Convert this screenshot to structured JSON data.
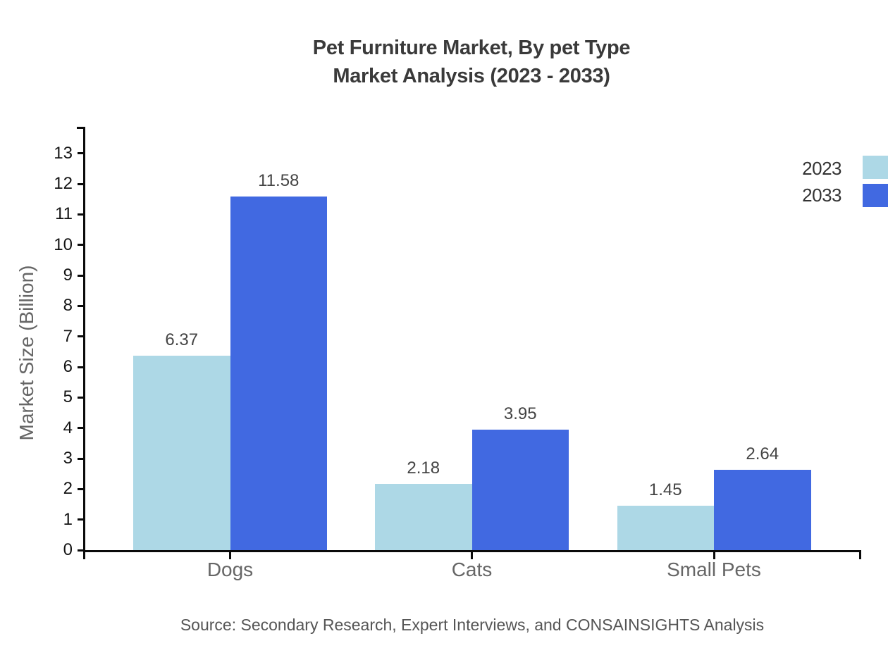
{
  "title": {
    "line1": "Pet Furniture Market, By pet Type",
    "line2": "Market Analysis (2023 - 2033)"
  },
  "legend": [
    {
      "label": "2023",
      "color": "#ADD8E6"
    },
    {
      "label": "2033",
      "color": "#4169E1"
    }
  ],
  "source": "Source: Secondary Research, Expert Interviews, and CONSAINSIGHTS Analysis",
  "colors": {
    "series_2023": "#ADD8E6",
    "series_2033": "#4169E1",
    "axis": "#0a0a0a",
    "title_text": "#3a3a3a",
    "muted_text": "#666666"
  },
  "chart_data": {
    "type": "bar",
    "title": "Pet Furniture Market, By pet Type Market Analysis (2023 - 2033)",
    "categories": [
      "Dogs",
      "Cats",
      "Small Pets"
    ],
    "series": [
      {
        "name": "2023",
        "color": "#ADD8E6",
        "values": [
          6.37,
          2.18,
          1.45
        ]
      },
      {
        "name": "2033",
        "color": "#4169E1",
        "values": [
          11.58,
          3.95,
          2.64
        ]
      }
    ],
    "xlabel": "",
    "ylabel": "Market Size (Billion)",
    "ylim": [
      0,
      13
    ],
    "yticks": [
      0,
      1,
      2,
      3,
      4,
      5,
      6,
      7,
      8,
      9,
      10,
      11,
      12,
      13
    ],
    "grid": false,
    "legend_position": "top-right",
    "value_labels": true
  }
}
